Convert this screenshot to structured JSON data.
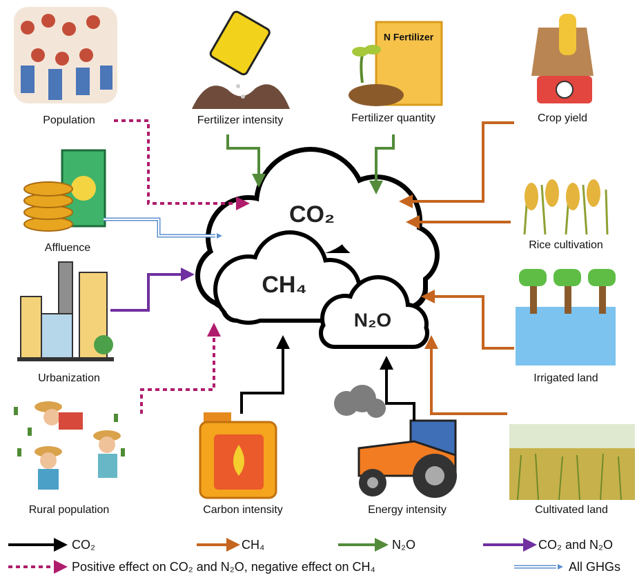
{
  "nodes": [
    {
      "label": "Population"
    },
    {
      "label": "Fertilizer intensity"
    },
    {
      "label": "Fertilizer quantity"
    },
    {
      "label": "Crop yield"
    },
    {
      "label": "Affluence"
    },
    {
      "label": "Rice cultivation"
    },
    {
      "label": "Urbanization"
    },
    {
      "label": "Irrigated land"
    },
    {
      "label": "Rural population"
    },
    {
      "label": "Carbon intensity"
    },
    {
      "label": "Energy intensity"
    },
    {
      "label": "Cultivated land"
    }
  ],
  "fertilizer_bag": "N Fertilizer",
  "clouds": [
    {
      "label": "CO₂"
    },
    {
      "label": "CH₄"
    },
    {
      "label": "N₂O"
    }
  ],
  "legend": [
    {
      "label": "CO₂"
    },
    {
      "label": "CH₄"
    },
    {
      "label": "N₂O"
    },
    {
      "label": "CO₂ and N₂O"
    },
    {
      "label": "Positive effect on CO₂ and N₂O, negative effect on CH₄"
    },
    {
      "label": "All GHGs"
    }
  ]
}
